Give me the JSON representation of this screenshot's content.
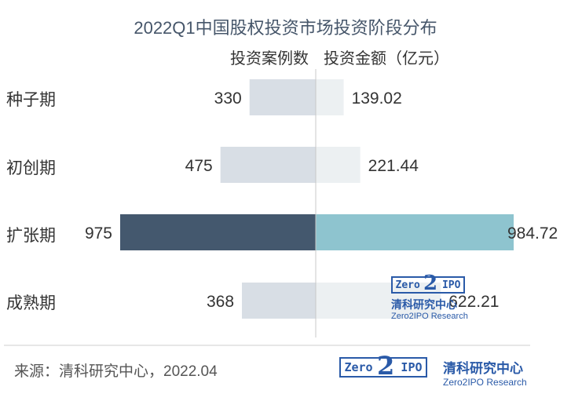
{
  "chart_data": {
    "type": "bar",
    "title": "2022Q1中国股权投资市场投资阶段分布",
    "categories": [
      "种子期",
      "初创期",
      "扩张期",
      "成熟期"
    ],
    "series": [
      {
        "name": "投资案例数",
        "values": [
          330,
          475,
          975,
          368
        ],
        "value_labels": [
          "330",
          "475",
          "975",
          "368"
        ]
      },
      {
        "name": "投资金额（亿元）",
        "values": [
          139.02,
          221.44,
          984.72,
          622.21
        ],
        "value_labels": [
          "139.02",
          "221.44",
          "984.72",
          "622.21"
        ]
      }
    ],
    "highlight_category": "扩张期",
    "colors": {
      "count_default": "#d8dee5",
      "count_highlight": "#44586e",
      "amount_default": "#ecf0f2",
      "amount_highlight": "#8ec4cf",
      "axis": "#c8c8c8"
    },
    "legend": "top-center"
  },
  "source": "来源：清科研究中心，2022.04",
  "logo": {
    "wordmark_left": "Zero",
    "wordmark_digit": "2",
    "wordmark_right": "IPO",
    "name_cn": "清科研究中心",
    "name_en": "Zero2IPO Research"
  }
}
